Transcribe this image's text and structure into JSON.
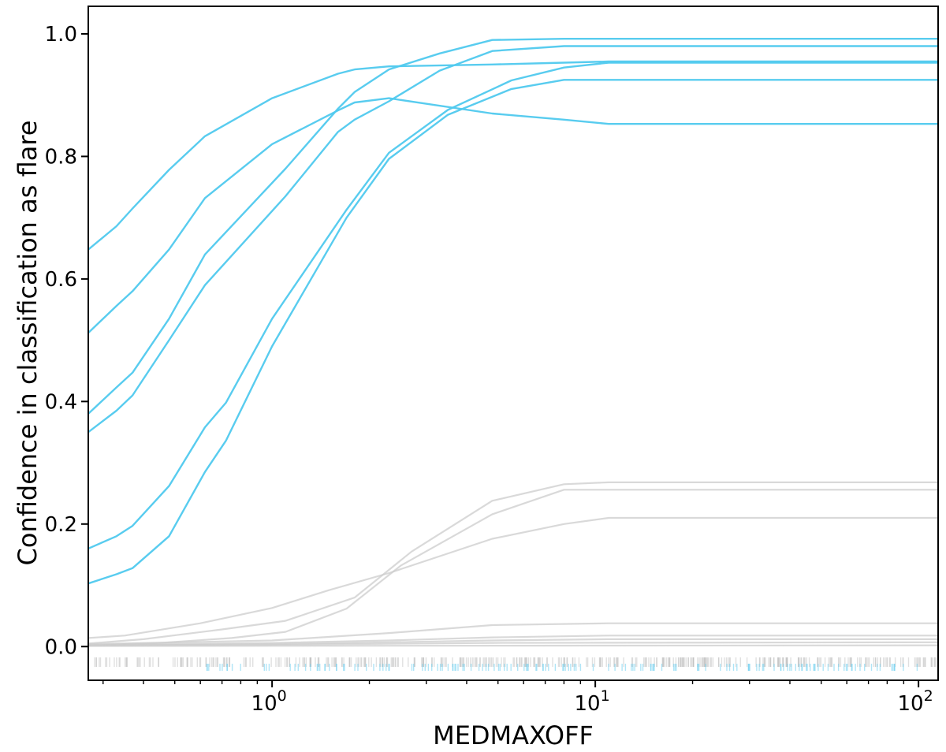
{
  "chart_data": {
    "type": "line",
    "title": "",
    "xlabel": "MEDMAXOFF",
    "ylabel": "Confidence in classification as flare",
    "xscale": "log",
    "xlim": [
      0.27,
      115
    ],
    "ylim": [
      -0.055,
      1.045
    ],
    "grid": false,
    "legend": "none",
    "x_ticks": [
      {
        "value": 1,
        "base": "10",
        "exp": "0"
      },
      {
        "value": 10,
        "base": "10",
        "exp": "1"
      },
      {
        "value": 100,
        "base": "10",
        "exp": "2"
      }
    ],
    "y_ticks": [
      {
        "value": 0.0,
        "label": "0.0"
      },
      {
        "value": 0.2,
        "label": "0.2"
      },
      {
        "value": 0.4,
        "label": "0.4"
      },
      {
        "value": 0.6,
        "label": "0.6"
      },
      {
        "value": 0.8,
        "label": "0.8"
      },
      {
        "value": 1.0,
        "label": "1.0"
      }
    ],
    "colors": {
      "flare": "#4fc9ee",
      "nonflare": "#cccccc",
      "rug_flare": "#6fd0f0",
      "rug_nonflare": "#bbbbbb",
      "axes": "#000000"
    },
    "series": [
      {
        "group": "flare",
        "x": [
          0.27,
          0.33,
          0.37,
          0.48,
          0.62,
          1.0,
          1.6,
          1.8,
          2.3,
          4.8,
          8,
          11,
          115
        ],
        "y": [
          0.648,
          0.686,
          0.715,
          0.778,
          0.833,
          0.895,
          0.935,
          0.942,
          0.947,
          0.95,
          0.953,
          0.955,
          0.955
        ]
      },
      {
        "group": "flare",
        "x": [
          0.27,
          0.33,
          0.37,
          0.48,
          0.62,
          1.0,
          1.6,
          1.8,
          2.3,
          4.8,
          8,
          11,
          115
        ],
        "y": [
          0.512,
          0.556,
          0.58,
          0.648,
          0.732,
          0.82,
          0.875,
          0.888,
          0.895,
          0.87,
          0.86,
          0.853,
          0.853
        ]
      },
      {
        "group": "flare",
        "x": [
          0.27,
          0.33,
          0.37,
          0.48,
          0.62,
          1.1,
          1.6,
          1.8,
          2.3,
          3.3,
          4.8,
          8,
          11,
          115
        ],
        "y": [
          0.38,
          0.423,
          0.447,
          0.535,
          0.64,
          0.78,
          0.878,
          0.905,
          0.942,
          0.968,
          0.99,
          0.992,
          0.992,
          0.992
        ]
      },
      {
        "group": "flare",
        "x": [
          0.27,
          0.33,
          0.37,
          0.48,
          0.62,
          1.1,
          1.6,
          1.8,
          2.3,
          3.3,
          4.8,
          8,
          11,
          115
        ],
        "y": [
          0.35,
          0.385,
          0.41,
          0.5,
          0.59,
          0.735,
          0.84,
          0.86,
          0.89,
          0.94,
          0.972,
          0.98,
          0.98,
          0.98
        ]
      },
      {
        "group": "flare",
        "x": [
          0.27,
          0.33,
          0.37,
          0.48,
          0.62,
          0.72,
          1.0,
          1.7,
          2.3,
          3.5,
          5.5,
          8,
          11,
          115
        ],
        "y": [
          0.16,
          0.18,
          0.197,
          0.262,
          0.358,
          0.398,
          0.535,
          0.713,
          0.806,
          0.876,
          0.924,
          0.945,
          0.953,
          0.953
        ]
      },
      {
        "group": "flare",
        "x": [
          0.27,
          0.33,
          0.37,
          0.48,
          0.62,
          0.72,
          1.0,
          1.7,
          2.3,
          3.5,
          5.5,
          8,
          11,
          115
        ],
        "y": [
          0.103,
          0.118,
          0.128,
          0.18,
          0.285,
          0.336,
          0.49,
          0.7,
          0.796,
          0.868,
          0.91,
          0.925,
          0.925,
          0.925
        ]
      },
      {
        "group": "nonflare",
        "x": [
          0.27,
          0.4,
          0.7,
          1.1,
          1.8,
          2.7,
          4.8,
          8,
          11,
          115
        ],
        "y": [
          0.005,
          0.012,
          0.028,
          0.042,
          0.08,
          0.155,
          0.238,
          0.265,
          0.268,
          0.268
        ]
      },
      {
        "group": "nonflare",
        "x": [
          0.27,
          0.45,
          0.75,
          1.1,
          1.7,
          2.5,
          4.8,
          8,
          11,
          115
        ],
        "y": [
          0.002,
          0.006,
          0.014,
          0.024,
          0.062,
          0.132,
          0.216,
          0.256,
          0.256,
          0.256
        ]
      },
      {
        "group": "nonflare",
        "x": [
          0.27,
          0.35,
          0.6,
          1.0,
          1.5,
          2.3,
          4.8,
          8,
          11,
          115
        ],
        "y": [
          0.014,
          0.018,
          0.038,
          0.063,
          0.092,
          0.12,
          0.176,
          0.2,
          0.21,
          0.21
        ]
      },
      {
        "group": "nonflare",
        "x": [
          0.27,
          1.0,
          2.3,
          4.8,
          11,
          115
        ],
        "y": [
          0.004,
          0.01,
          0.022,
          0.035,
          0.038,
          0.038
        ]
      },
      {
        "group": "nonflare",
        "x": [
          0.27,
          1.0,
          2.3,
          4.8,
          11,
          115
        ],
        "y": [
          0.003,
          0.006,
          0.01,
          0.015,
          0.018,
          0.018
        ]
      },
      {
        "group": "nonflare",
        "x": [
          0.27,
          1.0,
          2.3,
          4.8,
          11,
          115
        ],
        "y": [
          0.002,
          0.004,
          0.007,
          0.01,
          0.012,
          0.012
        ]
      },
      {
        "group": "nonflare",
        "x": [
          0.27,
          1.0,
          4.8,
          115
        ],
        "y": [
          0.002,
          0.003,
          0.006,
          0.007
        ]
      },
      {
        "group": "nonflare",
        "x": [
          0.27,
          115
        ],
        "y": [
          0.001,
          0.002
        ]
      }
    ],
    "rug": {
      "nonflare_x_range": [
        0.27,
        115
      ],
      "flare_x_range": [
        0.6,
        100
      ],
      "nonflare_count": 420,
      "flare_count": 160
    }
  }
}
